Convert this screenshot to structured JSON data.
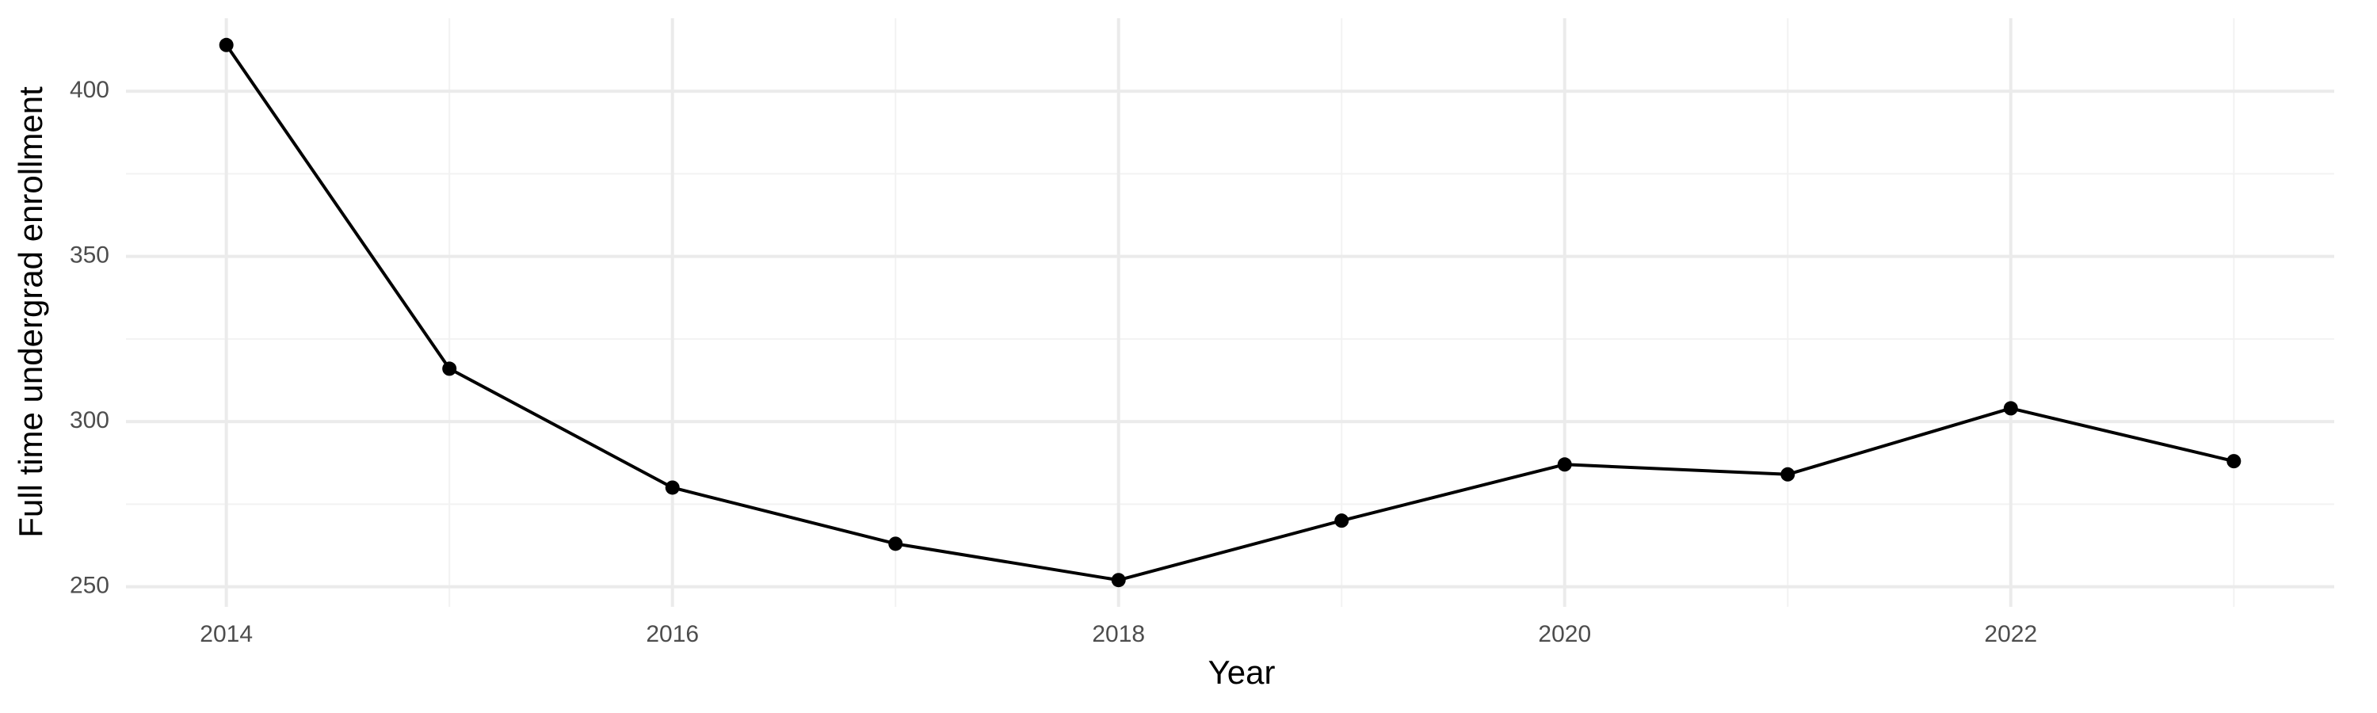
{
  "chart_data": {
    "type": "line",
    "x_label": "Year",
    "y_label": "Full time undergrad enrollment",
    "x": [
      2014,
      2015,
      2016,
      2017,
      2018,
      2019,
      2020,
      2021,
      2022,
      2023
    ],
    "series": [
      {
        "color": "#000000",
        "values": [
          414,
          316,
          280,
          263,
          252,
          270,
          287,
          284,
          304,
          288
        ]
      }
    ],
    "xlim": [
      2013.55,
      2023.45
    ],
    "ylim": [
      243.9,
      422.1
    ],
    "xticks": [
      2014,
      2016,
      2018,
      2020,
      2022
    ],
    "yticks": [
      250,
      300,
      350,
      400
    ],
    "x_minor_ticks": [
      2015,
      2017,
      2019,
      2021,
      2023
    ],
    "y_minor_ticks": [
      275,
      325,
      375
    ],
    "grid": true,
    "markers": true
  }
}
